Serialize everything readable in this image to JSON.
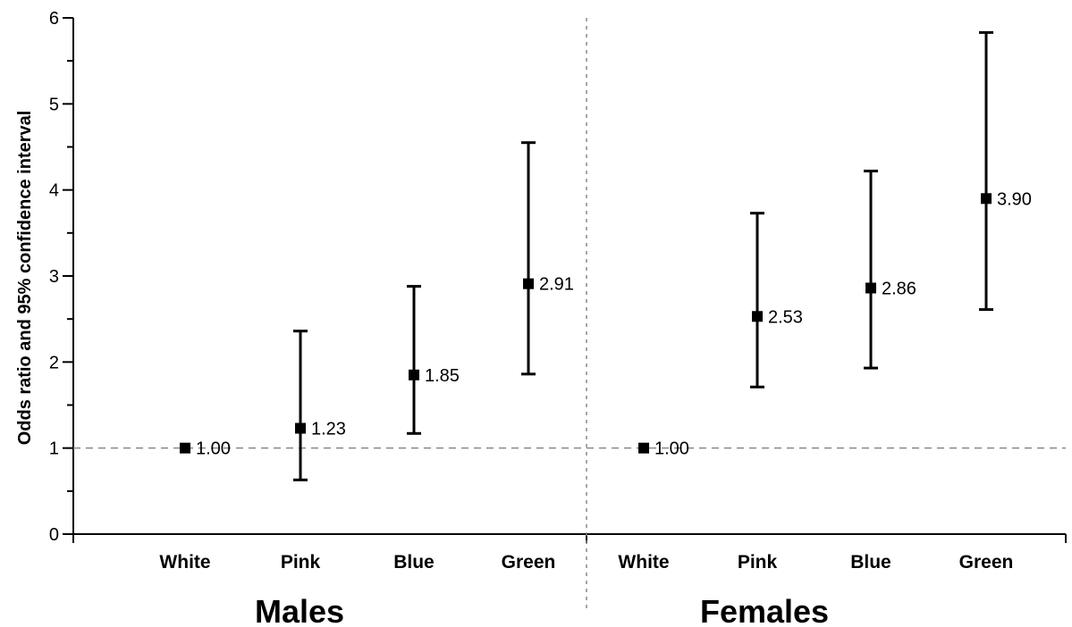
{
  "chart_data": {
    "type": "scatter",
    "title": "",
    "ylabel": "Odds ratio and 95% confidence interval",
    "xlabel": "",
    "ylim": [
      0,
      6
    ],
    "yticks": [
      "0",
      "1",
      "2",
      "3",
      "4",
      "5",
      "6"
    ],
    "reference_line": 1,
    "groups": [
      {
        "name": "Males",
        "categories": [
          "White",
          "Pink",
          "Blue",
          "Green"
        ],
        "values": [
          1.0,
          1.23,
          1.85,
          2.91
        ],
        "labels": [
          "1.00",
          "1.23",
          "1.85",
          "2.91"
        ],
        "ci_low": [
          null,
          0.63,
          1.17,
          1.86
        ],
        "ci_high": [
          null,
          2.36,
          2.88,
          4.55
        ]
      },
      {
        "name": "Females",
        "categories": [
          "White",
          "Pink",
          "Blue",
          "Green"
        ],
        "values": [
          1.0,
          2.53,
          2.86,
          3.9
        ],
        "labels": [
          "1.00",
          "2.53",
          "2.86",
          "3.90"
        ],
        "ci_low": [
          null,
          1.71,
          1.93,
          2.61
        ],
        "ci_high": [
          null,
          3.73,
          4.22,
          5.83
        ]
      }
    ],
    "colors": {
      "marker": "#000000",
      "refline": "#888888"
    }
  }
}
